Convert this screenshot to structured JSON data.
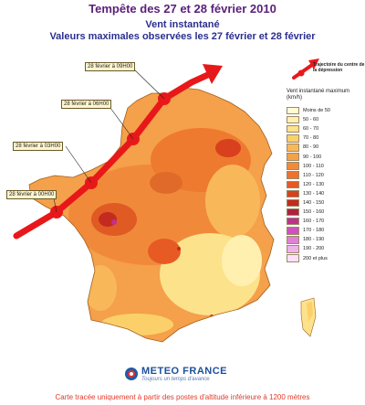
{
  "title": "Tempête des 27 et 28 février 2010",
  "subtitle_line1": "Vent instantané",
  "subtitle_line2": "Valeurs maximales observées les 27 février et 28 février",
  "trajectory_legend": "Trajectoire du centre de la dépression",
  "trajectory_points": [
    "28 février à 09H00",
    "28 février à 06H00",
    "28 février à 03H00",
    "28 février à 00H00"
  ],
  "legend": {
    "title": "Vent instantané maximum (km/h)",
    "classes": [
      {
        "label": "Moins de 50",
        "color": "#fffbd2"
      },
      {
        "label": "50 - 60",
        "color": "#fff0b0"
      },
      {
        "label": "60 - 70",
        "color": "#fde28c"
      },
      {
        "label": "70 - 80",
        "color": "#fbd06a"
      },
      {
        "label": "80 - 90",
        "color": "#f8b85a"
      },
      {
        "label": "90 - 100",
        "color": "#f5a04a"
      },
      {
        "label": "100 - 110",
        "color": "#f28a3a"
      },
      {
        "label": "110 - 120",
        "color": "#ee722e"
      },
      {
        "label": "120 - 130",
        "color": "#e85a24"
      },
      {
        "label": "130 - 140",
        "color": "#d8401e"
      },
      {
        "label": "140 - 150",
        "color": "#c42a1e"
      },
      {
        "label": "150 - 160",
        "color": "#b02040"
      },
      {
        "label": "160 - 170",
        "color": "#c03090"
      },
      {
        "label": "170 - 180",
        "color": "#d050c0"
      },
      {
        "label": "180 - 190",
        "color": "#e080d8"
      },
      {
        "label": "190 - 200",
        "color": "#f0b0ec"
      },
      {
        "label": "200 et plus",
        "color": "#fce0fa"
      }
    ]
  },
  "logo_name": "METEO FRANCE",
  "logo_tagline": "Toujours un temps d'avance",
  "footer_note": "Carte tracée uniquement à partir des postes d'altitude inférieure à 1200 mètres",
  "colors": {
    "title": "#5b1f7a",
    "subtitle": "#2b2f8f",
    "trajectory": "#e8181a",
    "footer": "#e03a2a"
  }
}
